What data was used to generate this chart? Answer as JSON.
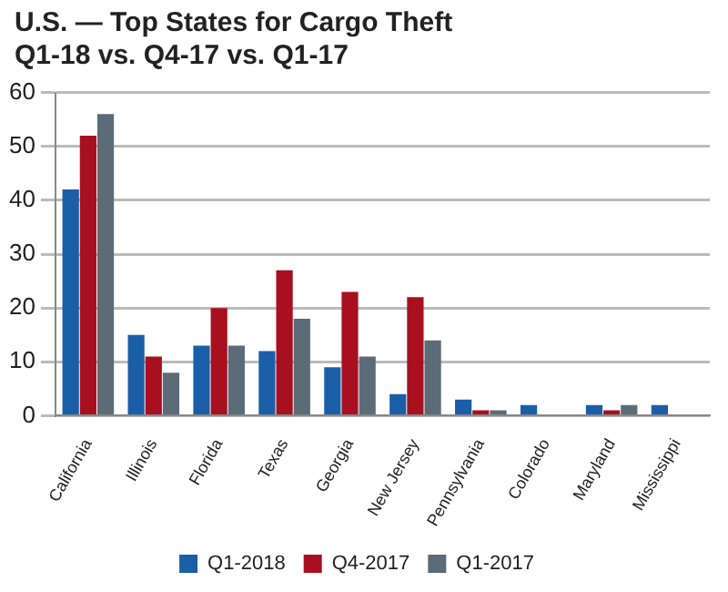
{
  "chart_data": {
    "type": "bar",
    "title": "U.S. — Top States for Cargo Theft",
    "subtitle": "Q1-18 vs. Q4-17 vs. Q1-17",
    "categories": [
      "California",
      "Illinois",
      "Florida",
      "Texas",
      "Georgia",
      "New Jersey",
      "Pennsylvania",
      "Colorado",
      "Maryland",
      "Mississippi"
    ],
    "series": [
      {
        "name": "Q1-2018",
        "color": "#1a5ea8",
        "values": [
          42,
          15,
          13,
          12,
          9,
          4,
          3,
          2,
          2,
          2
        ]
      },
      {
        "name": "Q4-2017",
        "color": "#a8101f",
        "values": [
          52,
          11,
          20,
          27,
          23,
          22,
          1,
          0,
          1,
          0
        ]
      },
      {
        "name": "Q1-2017",
        "color": "#5c6b78",
        "values": [
          56,
          8,
          13,
          18,
          11,
          14,
          1,
          0,
          2,
          0
        ]
      }
    ],
    "ylim": [
      0,
      60
    ],
    "yticks": [
      0,
      10,
      20,
      30,
      40,
      50,
      60
    ],
    "grid": "y",
    "legend": "bottom"
  }
}
